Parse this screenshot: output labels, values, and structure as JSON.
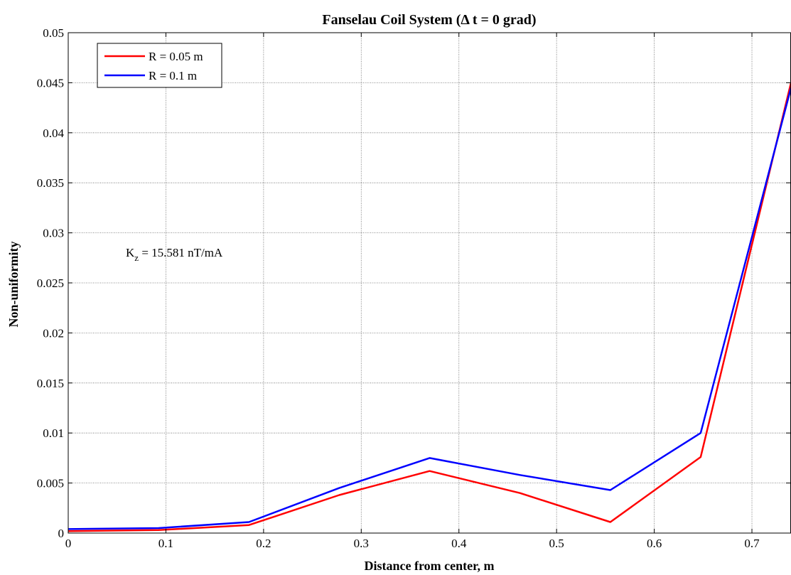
{
  "chart_data": {
    "type": "line",
    "title": "Fanselau Coil System (Δ t = 0 grad)",
    "xlabel": "Distance from center, m",
    "ylabel": "Non-uniformity",
    "xlim": [
      0,
      0.74
    ],
    "ylim": [
      0,
      0.05
    ],
    "xticks": [
      0,
      0.1,
      0.2,
      0.3,
      0.4,
      0.5,
      0.6,
      0.7
    ],
    "xtick_labels": [
      "0",
      "0.1",
      "0.2",
      "0.3",
      "0.4",
      "0.5",
      "0.6",
      "0.7"
    ],
    "yticks": [
      0,
      0.005,
      0.01,
      0.015,
      0.02,
      0.025,
      0.03,
      0.035,
      0.04,
      0.045,
      0.05
    ],
    "ytick_labels": [
      "0",
      "0.005",
      "0.01",
      "0.015",
      "0.02",
      "0.025",
      "0.03",
      "0.035",
      "0.04",
      "0.045",
      "0.05"
    ],
    "grid": true,
    "legend_position": "top-left",
    "annotation": {
      "main": "K",
      "sub": "z",
      "rest": " = 15.581 nT/mA"
    },
    "series": [
      {
        "name": "R = 0.05 m",
        "color": "#ff0000",
        "x": [
          0,
          0.0925,
          0.185,
          0.2775,
          0.37,
          0.4625,
          0.555,
          0.6475,
          0.74
        ],
        "y": [
          0.0002,
          0.0003,
          0.0008,
          0.0038,
          0.0062,
          0.004,
          0.0011,
          0.0076,
          0.045
        ]
      },
      {
        "name": "R = 0.1 m",
        "color": "#0000ff",
        "x": [
          0,
          0.0925,
          0.185,
          0.2775,
          0.37,
          0.4625,
          0.555,
          0.6475,
          0.74
        ],
        "y": [
          0.0004,
          0.0005,
          0.0011,
          0.0045,
          0.0075,
          0.0058,
          0.0043,
          0.01,
          0.0445
        ]
      }
    ]
  }
}
